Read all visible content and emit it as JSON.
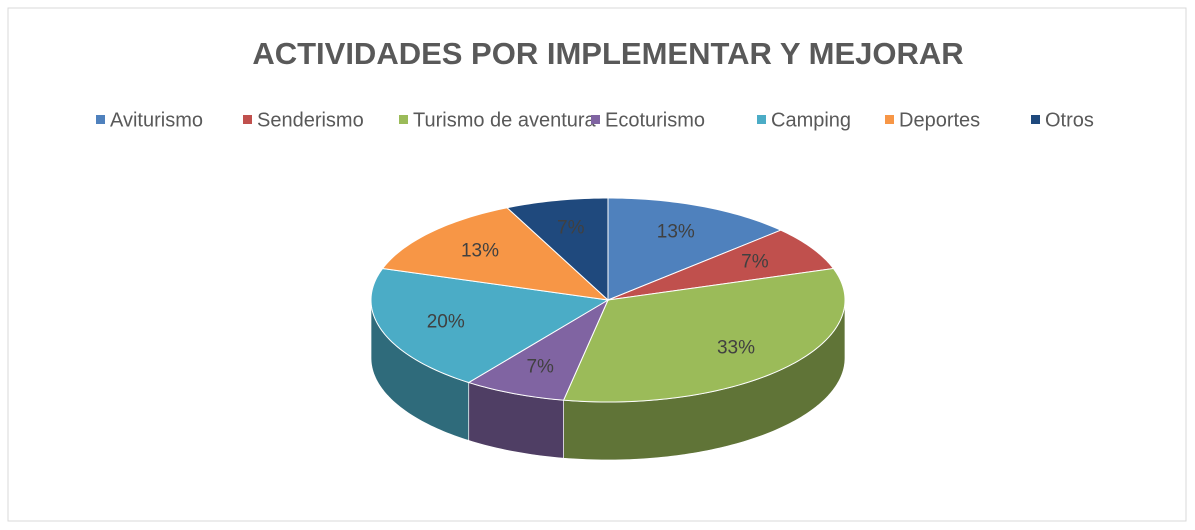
{
  "chart_data": {
    "type": "pie",
    "title": "ACTIVIDADES POR IMPLEMENTAR Y MEJORAR",
    "categories": [
      "Aviturismo",
      "Senderismo",
      "Turismo de aventura",
      "Ecoturismo",
      "Camping",
      "Deportes",
      "Otros"
    ],
    "values": [
      13,
      7,
      33,
      7,
      20,
      13,
      7
    ],
    "value_labels": [
      "13%",
      "7%",
      "33%",
      "7%",
      "20%",
      "13%",
      "7%"
    ],
    "colors": [
      "#4f81bd",
      "#c0504d",
      "#9bbb59",
      "#8064a2",
      "#4bacc6",
      "#f79646",
      "#1f497d"
    ],
    "legend": "top"
  }
}
